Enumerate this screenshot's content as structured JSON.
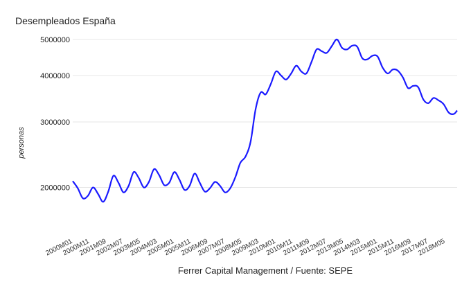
{
  "chart_data": {
    "type": "line",
    "title": "Desempleados España",
    "xlabel": "Ferrer Capital Management / Fuente: SEPE",
    "ylabel": "personas",
    "y_scale": "log",
    "ylim": [
      1550000,
      5150000
    ],
    "yticks": [
      5000000,
      4000000,
      3000000,
      2000000
    ],
    "grid": true,
    "color": "#1a1aff",
    "x_tick_labels": [
      "2000M01",
      "2000M11",
      "2001M09",
      "2002M07",
      "2003M05",
      "2004M03",
      "2005M01",
      "2005M11",
      "2006M09",
      "2007M07",
      "2008M05",
      "2009M03",
      "2010M01",
      "2010M11",
      "2011M09",
      "2012M07",
      "2013M05",
      "2014M03",
      "2015M01",
      "2015M11",
      "2016M09",
      "2017M07",
      "2018M05"
    ],
    "x_start": "2000M01",
    "x_end": "2018M12",
    "series": [
      {
        "name": "",
        "x": [
          "2000M01",
          "2000M04",
          "2000M07",
          "2000M10",
          "2001M01",
          "2001M04",
          "2001M07",
          "2001M10",
          "2002M01",
          "2002M04",
          "2002M07",
          "2002M10",
          "2003M01",
          "2003M04",
          "2003M07",
          "2003M10",
          "2004M01",
          "2004M04",
          "2004M07",
          "2004M10",
          "2005M01",
          "2005M04",
          "2005M07",
          "2005M10",
          "2006M01",
          "2006M04",
          "2006M07",
          "2006M10",
          "2007M01",
          "2007M04",
          "2007M07",
          "2007M10",
          "2008M01",
          "2008M04",
          "2008M07",
          "2008M10",
          "2009M01",
          "2009M04",
          "2009M07",
          "2009M10",
          "2010M01",
          "2010M04",
          "2010M07",
          "2010M10",
          "2011M01",
          "2011M04",
          "2011M07",
          "2011M10",
          "2012M01",
          "2012M04",
          "2012M07",
          "2012M10",
          "2013M01",
          "2013M04",
          "2013M07",
          "2013M10",
          "2014M01",
          "2014M04",
          "2014M07",
          "2014M10",
          "2015M01",
          "2015M04",
          "2015M07",
          "2015M10",
          "2016M01",
          "2016M04",
          "2016M07",
          "2016M10",
          "2017M01",
          "2017M04",
          "2017M07",
          "2017M10",
          "2018M01",
          "2018M04",
          "2018M07",
          "2018M10",
          "2018M12"
        ],
        "values": [
          2080000,
          1990000,
          1870000,
          1900000,
          2000000,
          1920000,
          1830000,
          1950000,
          2150000,
          2060000,
          1940000,
          2020000,
          2200000,
          2120000,
          2000000,
          2070000,
          2240000,
          2160000,
          2030000,
          2060000,
          2200000,
          2100000,
          1970000,
          2020000,
          2180000,
          2060000,
          1950000,
          1990000,
          2070000,
          2020000,
          1940000,
          1990000,
          2130000,
          2330000,
          2420000,
          2650000,
          3250000,
          3600000,
          3560000,
          3800000,
          4100000,
          4000000,
          3900000,
          4050000,
          4250000,
          4100000,
          4050000,
          4350000,
          4700000,
          4650000,
          4600000,
          4800000,
          5000000,
          4750000,
          4700000,
          4810000,
          4780000,
          4450000,
          4420000,
          4520000,
          4500000,
          4200000,
          4050000,
          4150000,
          4120000,
          3950000,
          3700000,
          3750000,
          3720000,
          3450000,
          3370000,
          3480000,
          3430000,
          3350000,
          3180000,
          3150000,
          3220000
        ]
      }
    ]
  }
}
